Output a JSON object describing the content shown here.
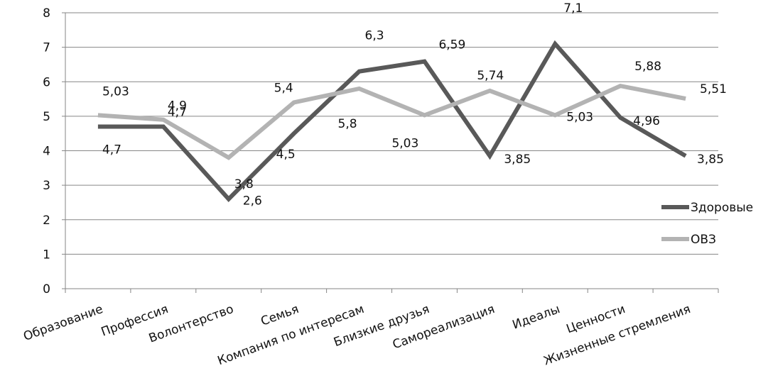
{
  "chart_data": {
    "type": "line",
    "categories": [
      "Образование",
      "Профессия",
      "Волонтерство",
      "Семья",
      "Компания по интересам",
      "Близкие друзья",
      "Самореализация",
      "Идеалы",
      "Ценности",
      "Жизненные стремления"
    ],
    "series": [
      {
        "name": "Здоровые",
        "color": "#595959",
        "values": [
          4.7,
          4.7,
          2.6,
          4.5,
          6.3,
          6.59,
          3.85,
          7.1,
          4.96,
          3.85
        ],
        "labels": [
          "4,7",
          "4,7",
          "2,6",
          "4,5",
          "6,3",
          "6,59",
          "3,85",
          "7,1",
          "4,96",
          "3,85"
        ]
      },
      {
        "name": "ОВЗ",
        "color": "#b3b3b3",
        "values": [
          5.03,
          4.9,
          3.8,
          5.4,
          5.8,
          5.03,
          5.74,
          5.03,
          5.88,
          5.51
        ],
        "labels": [
          "5,03",
          "4,9",
          "3,8",
          "5,4",
          "5,8",
          "5,03",
          "5,74",
          "5,03",
          "5,88",
          "5,51"
        ]
      }
    ],
    "ylim": [
      0,
      8
    ],
    "yticks": [
      "0",
      "1",
      "2",
      "3",
      "4",
      "5",
      "6",
      "7",
      "8"
    ],
    "grid": true,
    "legend": "right"
  }
}
